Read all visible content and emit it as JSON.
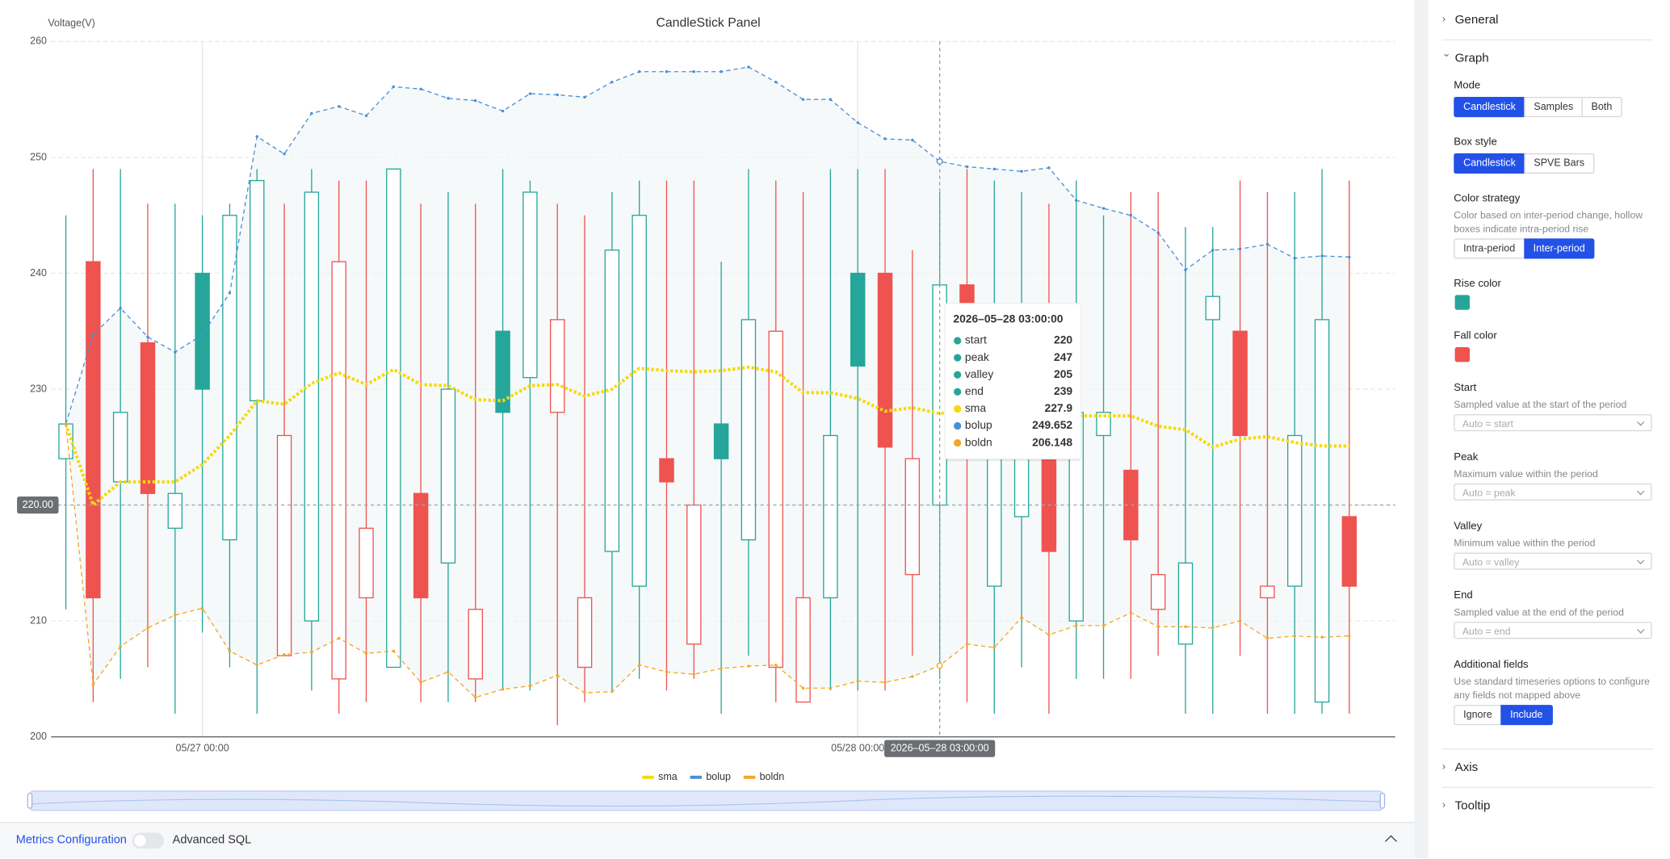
{
  "chart_data": {
    "type": "candlestick",
    "title": "CandleStick Panel",
    "y_label": "Voltage(V)",
    "categories": [
      null,
      null,
      null,
      null,
      null,
      "05/27 00:00",
      null,
      null,
      null,
      null,
      null,
      null,
      null,
      null,
      null,
      null,
      null,
      null,
      null,
      null,
      null,
      null,
      null,
      null,
      null,
      null,
      null,
      null,
      null,
      "05/28 00:00",
      null,
      null,
      null,
      null,
      null,
      null,
      null,
      null,
      null,
      null,
      null,
      null,
      null,
      null,
      null,
      null,
      null,
      null
    ],
    "ylim": [
      200,
      260
    ],
    "yticks": [
      200,
      210,
      220,
      230,
      240,
      250,
      260
    ],
    "grid": true,
    "rise_color": "#26a69a",
    "fall_color": "#ef5350",
    "candles": [
      {
        "name": "start",
        "values": [
          224,
          241,
          222,
          234,
          218,
          240,
          217,
          229,
          207,
          210,
          205,
          212,
          206,
          221,
          215,
          205,
          235,
          231,
          228,
          206,
          216,
          213,
          224,
          208,
          227,
          217,
          206,
          203,
          212,
          240,
          240,
          214,
          220,
          239,
          213,
          219,
          232,
          210,
          226,
          223,
          211,
          208,
          236,
          235,
          212,
          213,
          203,
          219
        ]
      },
      {
        "name": "peak",
        "values": [
          245,
          249,
          249,
          246,
          246,
          245,
          246,
          249,
          246,
          249,
          248,
          248,
          249,
          246,
          247,
          246,
          249,
          248,
          246,
          245,
          247,
          248,
          248,
          248,
          241,
          249,
          248,
          247,
          249,
          249,
          249,
          242,
          247,
          249,
          248,
          247,
          246,
          248,
          245,
          247,
          247,
          244,
          244,
          248,
          247,
          247,
          249,
          248
        ]
      },
      {
        "name": "valley",
        "values": [
          211,
          203,
          205,
          206,
          202,
          209,
          206,
          202,
          207,
          204,
          202,
          203,
          206,
          203,
          203,
          203,
          204,
          204,
          201,
          203,
          204,
          205,
          204,
          205,
          202,
          207,
          203,
          203,
          204,
          204,
          204,
          207,
          205,
          203,
          202,
          206,
          202,
          205,
          205,
          205,
          207,
          202,
          202,
          207,
          202,
          202,
          202,
          202
        ]
      },
      {
        "name": "end",
        "values": [
          227,
          212,
          228,
          221,
          221,
          230,
          245,
          248,
          226,
          247,
          241,
          218,
          249,
          212,
          230,
          211,
          228,
          247,
          236,
          212,
          242,
          245,
          222,
          220,
          224,
          236,
          235,
          212,
          226,
          232,
          225,
          224,
          239,
          229,
          231,
          233,
          216,
          228,
          228,
          217,
          214,
          215,
          238,
          226,
          213,
          226,
          236,
          213
        ]
      }
    ],
    "series": [
      {
        "name": "sma",
        "color": "#f5d90a",
        "values": [
          227,
          220,
          222,
          222,
          222,
          223.5,
          226,
          229,
          228.7,
          230.5,
          231.4,
          230.4,
          231.7,
          230.4,
          230.3,
          229.1,
          229,
          230.3,
          230.4,
          229.4,
          230,
          231.8,
          231.6,
          231.5,
          231.6,
          231.9,
          231.5,
          229.7,
          229.7,
          229.2,
          228.1,
          228.4,
          227.9,
          228.2,
          228.1,
          228.1,
          227.7,
          227.7,
          227.7,
          227.7,
          226.8,
          226.5,
          225,
          225.7,
          225.9,
          225.4,
          225.1,
          225.1
        ]
      },
      {
        "name": "bolup",
        "color": "#4a8fd6",
        "values": [
          227,
          234.7,
          237,
          234.5,
          233.2,
          234.7,
          238.3,
          251.8,
          250.3,
          253.8,
          254.4,
          253.6,
          256.1,
          255.9,
          255.1,
          254.9,
          254,
          255.5,
          255.4,
          255.2,
          256.5,
          257.4,
          257.4,
          257.4,
          257.4,
          257.8,
          256.5,
          255,
          255,
          253,
          251.6,
          251.5,
          249.652,
          249.2,
          249,
          248.8,
          249.1,
          246.3,
          245.6,
          245,
          243.5,
          240.3,
          242,
          242.1,
          242.5,
          241.3,
          241.5,
          241.4
        ]
      },
      {
        "name": "boldn",
        "color": "#f5a623",
        "values": [
          227,
          204.5,
          207.8,
          209.4,
          210.5,
          211.1,
          207.4,
          206.2,
          207.1,
          207.3,
          208.5,
          207.2,
          207.4,
          204.7,
          205.6,
          203.4,
          204.1,
          204.4,
          205.3,
          203.8,
          203.9,
          206.2,
          205.6,
          205.4,
          205.9,
          206.1,
          206.2,
          204.2,
          204.2,
          204.8,
          204.7,
          205.2,
          206.148,
          208,
          207.7,
          210.3,
          208.8,
          209.6,
          209.6,
          210.7,
          209.5,
          209.5,
          209.4,
          210,
          208.5,
          208.7,
          208.6,
          208.7
        ]
      }
    ],
    "pointer_x": {
      "category_index": 32,
      "label": "2026–05–28 03:00:00"
    },
    "pointer_y": {
      "value": 220,
      "label": "220.00"
    },
    "tooltip": {
      "title": "2026–05–28 03:00:00"
    }
  },
  "panel": {
    "sections": [
      {
        "title": "General"
      },
      {
        "title": "Graph",
        "open": true,
        "fields": [
          {
            "label": "Mode",
            "options": [
              "Candlestick",
              "Samples",
              "Both"
            ],
            "selected": 0
          },
          {
            "label": "Box style",
            "options": [
              "Candlestick",
              "SPVE Bars"
            ],
            "selected": 0
          },
          {
            "label": "Color strategy",
            "desc": "Color based on inter-period change, hollow boxes indicate intra-period rise",
            "options": [
              "Intra-period",
              "Inter-period"
            ],
            "selected": 1
          },
          {
            "label": "Rise color",
            "color": "#26a69a"
          },
          {
            "label": "Fall color",
            "color": "#ef5350"
          },
          {
            "label": "Start",
            "desc": "Sampled value at the start of the period",
            "placeholder": "Auto = start"
          },
          {
            "label": "Peak",
            "desc": "Maximum value within the period",
            "placeholder": "Auto = peak"
          },
          {
            "label": "Valley",
            "desc": "Minimum value within the period",
            "placeholder": "Auto = valley"
          },
          {
            "label": "End",
            "desc": "Sampled value at the end of the period",
            "placeholder": "Auto = end"
          },
          {
            "label": "Additional fields",
            "desc": "Use standard timeseries options to configure any fields not mapped above",
            "options": [
              "Ignore",
              "Include"
            ],
            "selected": 1
          }
        ]
      },
      {
        "title": "Axis"
      },
      {
        "title": "Tooltip"
      }
    ]
  },
  "bottom": {
    "metrics": "Metrics Configuration",
    "advanced": "Advanced SQL"
  }
}
